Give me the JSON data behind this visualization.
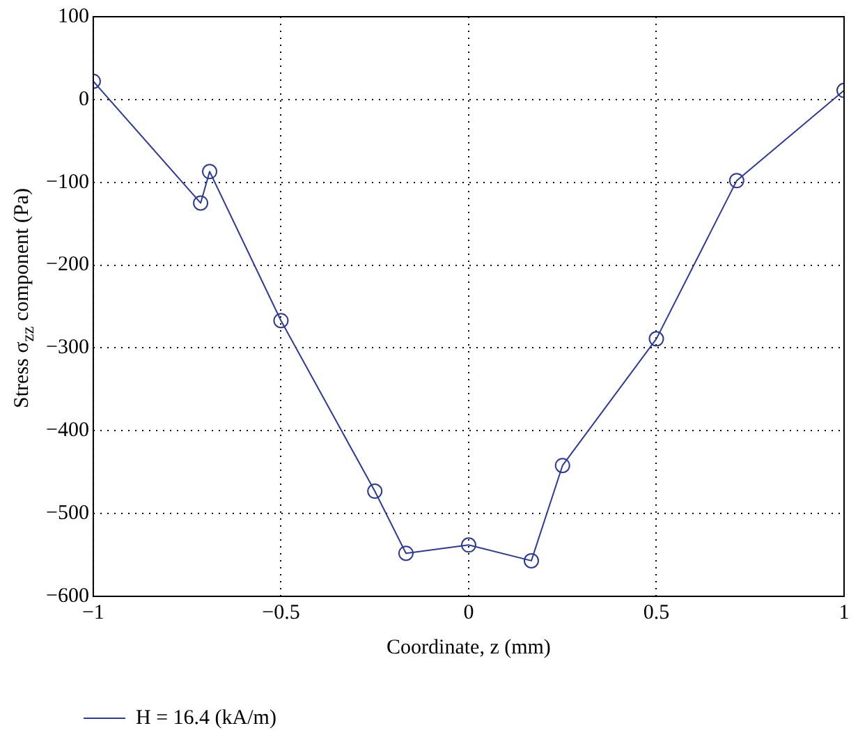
{
  "chart_data": {
    "type": "line",
    "xlabel": "Coordinate, z (mm)",
    "ylabel": "Stress σ$_{zz}$ component (Pa)",
    "xlim": [
      -1,
      1
    ],
    "xticks": [
      -1,
      -0.5,
      0,
      0.5,
      1
    ],
    "ylim": [
      -600,
      100
    ],
    "yticks": [
      -600,
      -500,
      -400,
      -300,
      -200,
      -100,
      0,
      100
    ],
    "grid": true,
    "legend": "bottom left",
    "marker": "circle",
    "line_style": "solid",
    "series": [
      {
        "name": "H = 16.4 (kA/m)",
        "color": "#2b3a9c",
        "x": [
          -1,
          -0.714,
          -0.69,
          -0.5,
          -0.25,
          -0.167,
          0,
          0.167,
          0.25,
          0.5,
          0.714,
          1
        ],
        "values": [
          22,
          -125,
          -87,
          -267,
          -473,
          -548,
          -538,
          -557,
          -442,
          -289,
          -98,
          11
        ]
      }
    ]
  }
}
